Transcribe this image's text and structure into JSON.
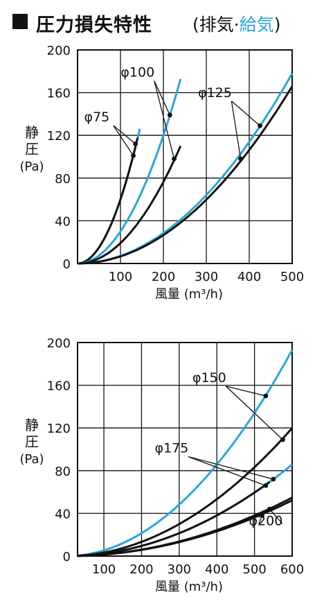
{
  "header": {
    "title": "圧力損失特性",
    "subtitle_open": "(排気·",
    "subtitle_blue": "給気",
    "subtitle_close": ")"
  },
  "colors": {
    "blue": "#2aa5dc",
    "black": "#111111"
  },
  "chart_data": [
    {
      "type": "line",
      "ylabel": [
        "静",
        "圧",
        "(Pa)"
      ],
      "xlabel": "風量 (m³/h)",
      "xlim": [
        0,
        500
      ],
      "ylim": [
        0,
        200
      ],
      "xticks": [
        100,
        200,
        300,
        400,
        500
      ],
      "yticks": [
        0,
        40,
        80,
        120,
        160,
        200
      ],
      "grid": true,
      "series": [
        {
          "group": "φ75",
          "color": "blue",
          "k": 0.006,
          "n": 2.0,
          "xmax": 145,
          "label_points": [
            [
              135,
              112
            ]
          ]
        },
        {
          "group": "φ75",
          "color": "black",
          "k": 0.006,
          "n": 2.0,
          "xmax": 140,
          "label_points": [
            [
              130,
              101
            ]
          ]
        },
        {
          "group": "φ100",
          "color": "blue",
          "k": 0.003,
          "n": 2.0,
          "xmax": 240,
          "label_points": [
            [
              215,
              139
            ]
          ]
        },
        {
          "group": "φ100",
          "color": "black",
          "k": 0.00191,
          "n": 2.0,
          "xmax": 240,
          "label_points": [
            [
              225,
              98
            ]
          ]
        },
        {
          "group": "φ125",
          "color": "blue",
          "k": 0.000712,
          "n": 2.0,
          "xmax": 500,
          "label_points": [
            [
              425,
              129
            ]
          ]
        },
        {
          "group": "φ125",
          "color": "black",
          "k": 0.000664,
          "n": 2.0,
          "xmax": 500,
          "label_points": [
            [
              380,
              98
            ]
          ]
        }
      ],
      "annotations": [
        {
          "text": "φ75",
          "at": [
            45,
            133
          ]
        },
        {
          "text": "φ100",
          "at": [
            140,
            175
          ]
        },
        {
          "text": "φ125",
          "at": [
            320,
            156
          ]
        }
      ]
    },
    {
      "type": "line",
      "ylabel": [
        "静",
        "圧",
        "(Pa)"
      ],
      "xlabel": "風量 (m³/h)",
      "xlim": [
        30,
        600
      ],
      "ylim": [
        0,
        200
      ],
      "xticks": [
        100,
        200,
        300,
        400,
        500,
        600
      ],
      "yticks": [
        0,
        40,
        80,
        120,
        160,
        200
      ],
      "grid": true,
      "series": [
        {
          "group": "φ150",
          "color": "blue",
          "k": 0.000536,
          "n": 2.0,
          "xmax": 600,
          "label_points": [
            [
              530,
              150
            ]
          ]
        },
        {
          "group": "φ150",
          "color": "black",
          "k": 0.000333,
          "n": 2.0,
          "xmax": 600,
          "label_points": [
            [
              575,
              109
            ]
          ]
        },
        {
          "group": "φ175",
          "color": "blue",
          "k": 0.000238,
          "n": 2.0,
          "xmax": 600,
          "label_points": [
            [
              550,
              72
            ]
          ]
        },
        {
          "group": "φ175",
          "color": "black",
          "k": 0.000238,
          "n": 2.0,
          "xmax": 540,
          "label_points": [
            [
              530,
              66
            ]
          ]
        },
        {
          "group": "φ200",
          "color": "black",
          "k": 0.000152,
          "n": 2.0,
          "xmax": 600,
          "label_points": [
            [
              540,
              44
            ]
          ]
        },
        {
          "group": "φ200",
          "color": "black",
          "k": 0.000145,
          "n": 2.0,
          "xmax": 600,
          "label_points": [
            [
              520,
              38
            ]
          ]
        }
      ],
      "annotations": [
        {
          "text": "φ150",
          "at": [
            380,
            163
          ]
        },
        {
          "text": "φ175",
          "at": [
            280,
            97
          ]
        },
        {
          "text": "φ200",
          "at": [
            530,
            29
          ]
        }
      ]
    }
  ]
}
